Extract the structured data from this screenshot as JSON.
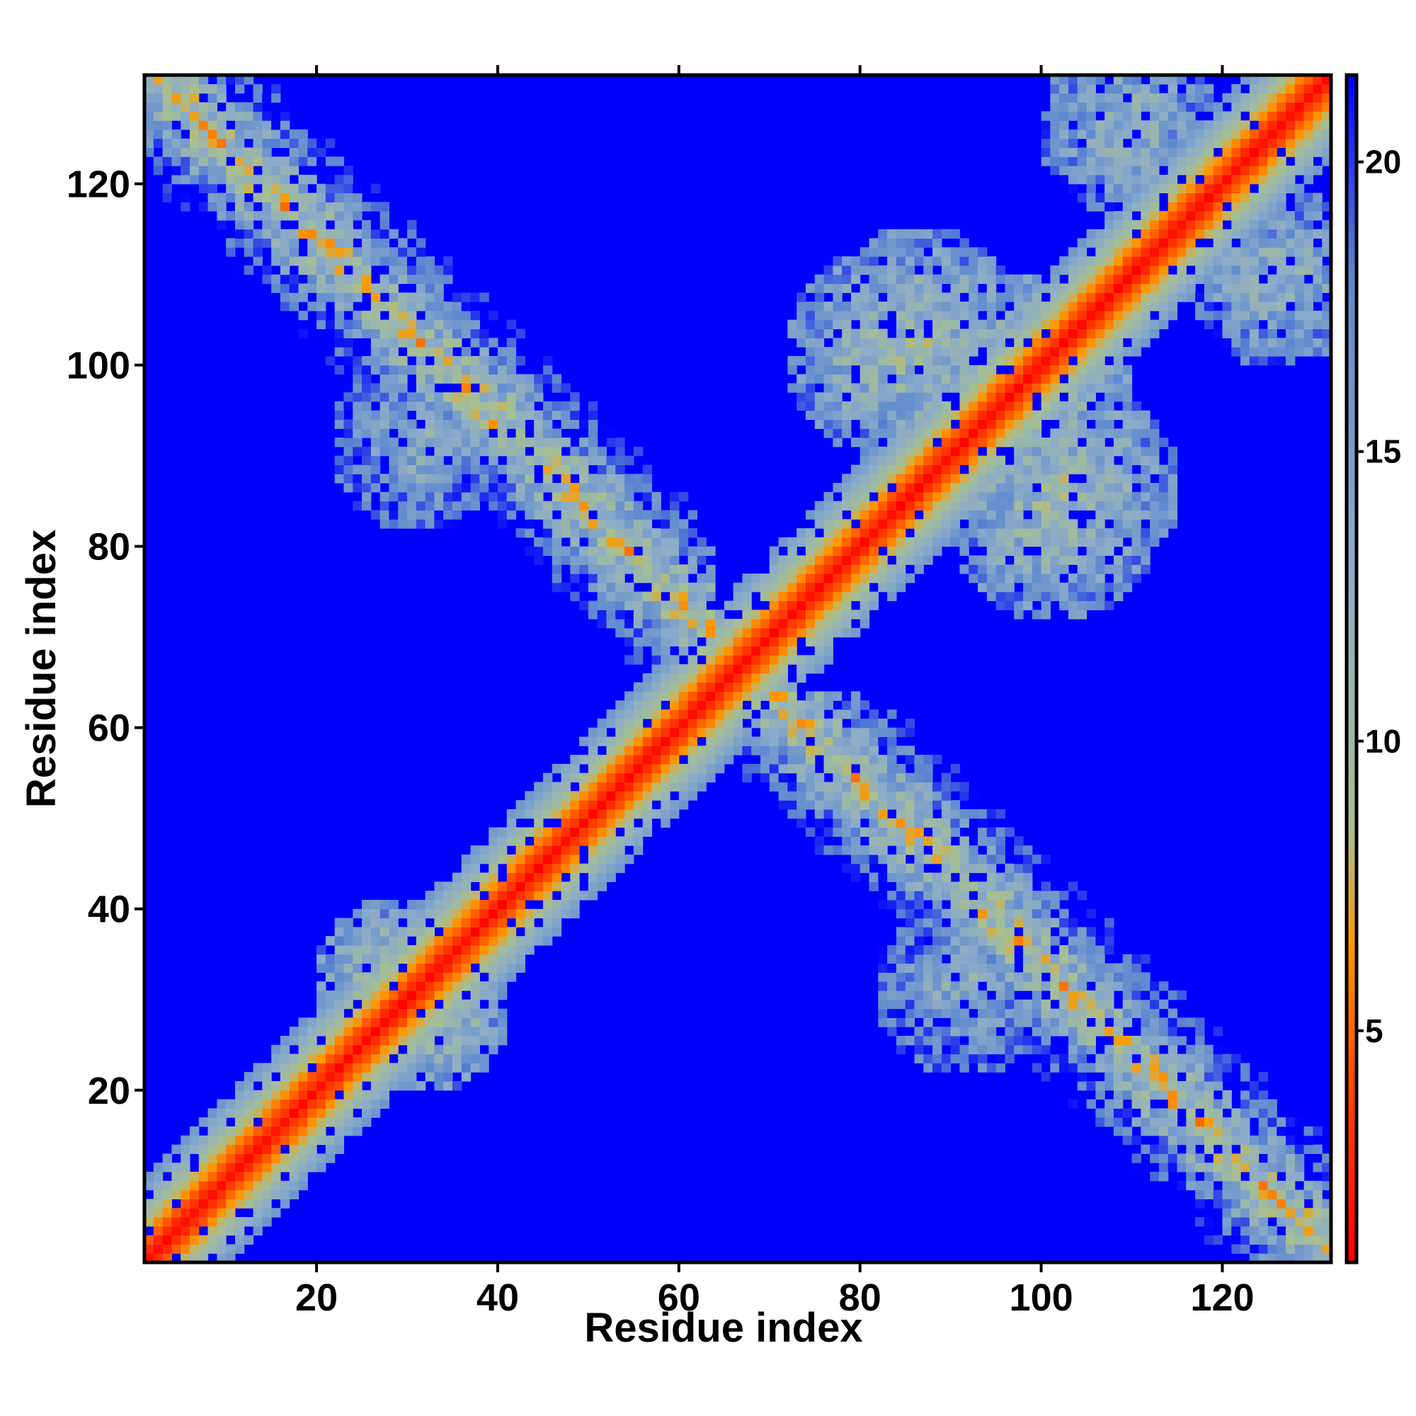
{
  "chart_data": {
    "type": "heatmap",
    "title": "",
    "xlabel": "Residue index",
    "ylabel": "Residue index",
    "xlim": [
      1,
      131
    ],
    "ylim": [
      1,
      131
    ],
    "x_ticks": [
      20,
      40,
      60,
      80,
      100,
      120
    ],
    "y_ticks": [
      20,
      40,
      60,
      80,
      100,
      120
    ],
    "grid": false,
    "legend": "colorbar-right",
    "colorbar": {
      "range": [
        1,
        21.5
      ],
      "ticks": [
        5,
        10,
        15,
        20
      ],
      "color_stops": [
        {
          "value": 1,
          "color": "#ff0000"
        },
        {
          "value": 4.5,
          "color": "#ff5500"
        },
        {
          "value": 6.5,
          "color": "#ff9900"
        },
        {
          "value": 8.5,
          "color": "#a8c090"
        },
        {
          "value": 13,
          "color": "#8cacc8"
        },
        {
          "value": 18,
          "color": "#5e88d0"
        },
        {
          "value": 21.5,
          "color": "#0000ff"
        }
      ]
    },
    "matrix_description": "Symmetric residue-residue distance map (131 x 131). Short distances (red/orange) along the main diagonal; anti-diagonal bands of close contacts spanning roughly residues 1-60 vs 70-131 and 25-35 vs 25-35 and 85-120 vs 85-120 clusters; distant pairs saturate at blue.",
    "features": [
      {
        "kind": "diagonal",
        "width_residues": 7
      },
      {
        "kind": "contact_band",
        "i_range": [
          2,
          60
        ],
        "j_range": [
          131,
          63
        ],
        "min_value": 5
      },
      {
        "kind": "contact_cluster",
        "center": [
          30,
          28
        ],
        "radius": 10,
        "min_value": 6
      },
      {
        "kind": "contact_cluster",
        "center": [
          95,
          95
        ],
        "radius": 14,
        "min_value": 6
      },
      {
        "kind": "contact_cluster",
        "center": [
          100,
          82
        ],
        "radius": 12,
        "min_value": 7
      },
      {
        "kind": "contact_cluster",
        "center": [
          85,
          102
        ],
        "radius": 12,
        "min_value": 7
      },
      {
        "kind": "contact_cluster",
        "center": [
          30,
          90
        ],
        "radius": 10,
        "min_value": 9
      },
      {
        "kind": "contact_cluster",
        "center": [
          108,
          125
        ],
        "radius": 10,
        "min_value": 8
      }
    ],
    "n_residues": 131
  }
}
